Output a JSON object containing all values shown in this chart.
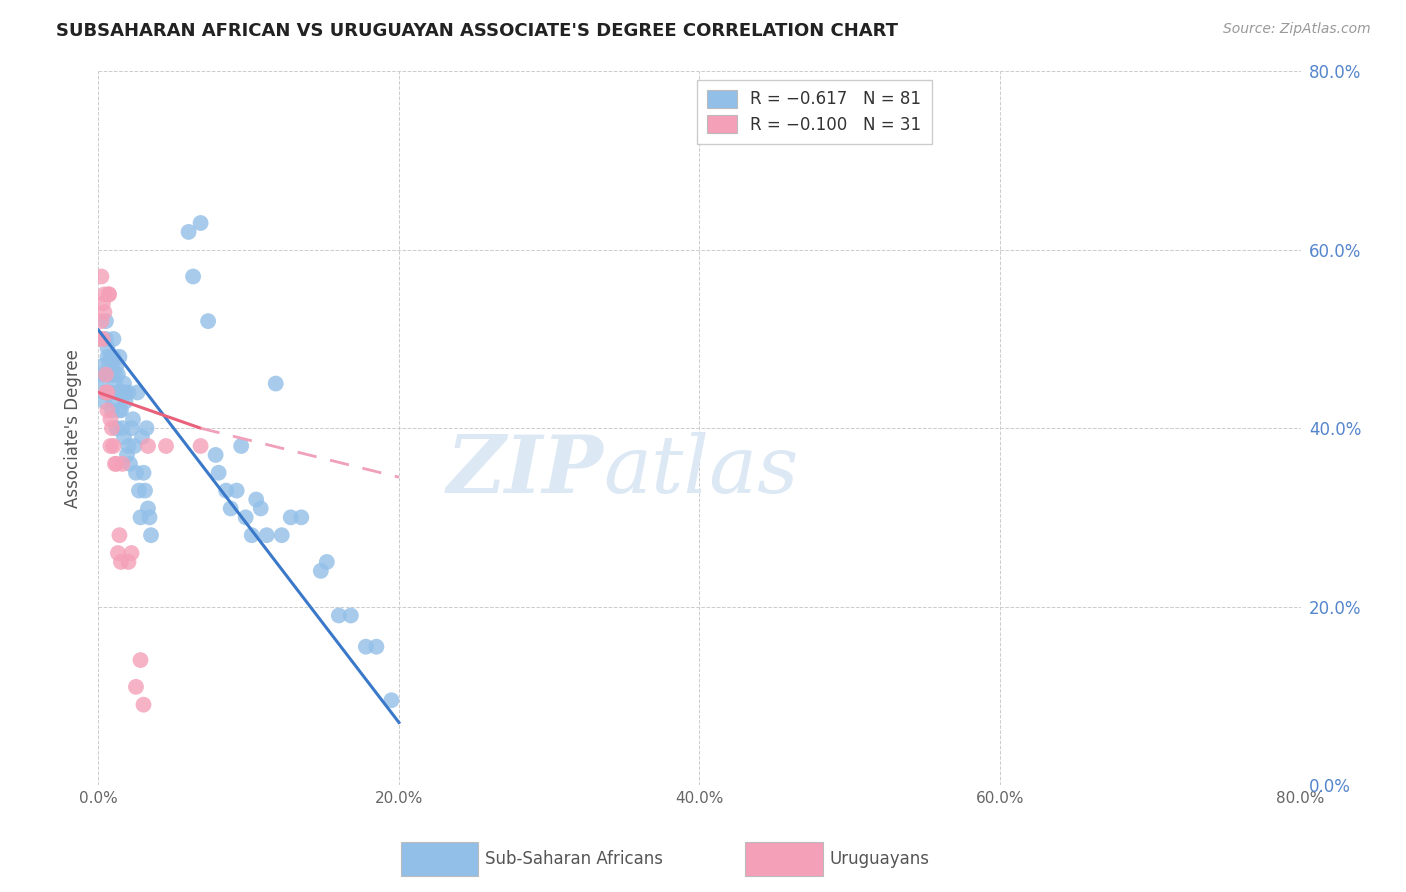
{
  "title": "SUBSAHARAN AFRICAN VS URUGUAYAN ASSOCIATE'S DEGREE CORRELATION CHART",
  "source": "Source: ZipAtlas.com",
  "ylabel": "Associate's Degree",
  "xlim": [
    0,
    0.8
  ],
  "ylim": [
    0,
    0.8
  ],
  "watermark_zip": "ZIP",
  "watermark_atlas": "atlas",
  "blue_color": "#92bfe8",
  "pink_color": "#f4a0b8",
  "blue_line_color": "#3a78c9",
  "pink_line_color": "#e8607a",
  "pink_line_dashed_color": "#f0a0b8",
  "background_color": "#ffffff",
  "grid_color": "#cccccc",
  "title_color": "#222222",
  "right_axis_color": "#5585cc",
  "watermark_color": "#dde8f5",
  "blue_scatter": [
    [
      0.002,
      0.455
    ],
    [
      0.003,
      0.46
    ],
    [
      0.003,
      0.47
    ],
    [
      0.004,
      0.44
    ],
    [
      0.004,
      0.43
    ],
    [
      0.005,
      0.52
    ],
    [
      0.005,
      0.5
    ],
    [
      0.006,
      0.49
    ],
    [
      0.006,
      0.48
    ],
    [
      0.007,
      0.47
    ],
    [
      0.007,
      0.46
    ],
    [
      0.007,
      0.44
    ],
    [
      0.008,
      0.46
    ],
    [
      0.008,
      0.44
    ],
    [
      0.008,
      0.48
    ],
    [
      0.009,
      0.46
    ],
    [
      0.009,
      0.47
    ],
    [
      0.009,
      0.42
    ],
    [
      0.01,
      0.5
    ],
    [
      0.01,
      0.43
    ],
    [
      0.01,
      0.48
    ],
    [
      0.011,
      0.45
    ],
    [
      0.011,
      0.46
    ],
    [
      0.012,
      0.47
    ],
    [
      0.012,
      0.4
    ],
    [
      0.013,
      0.44
    ],
    [
      0.013,
      0.46
    ],
    [
      0.014,
      0.42
    ],
    [
      0.014,
      0.48
    ],
    [
      0.015,
      0.42
    ],
    [
      0.015,
      0.44
    ],
    [
      0.016,
      0.44
    ],
    [
      0.016,
      0.4
    ],
    [
      0.017,
      0.39
    ],
    [
      0.017,
      0.45
    ],
    [
      0.018,
      0.43
    ],
    [
      0.018,
      0.44
    ],
    [
      0.019,
      0.37
    ],
    [
      0.02,
      0.44
    ],
    [
      0.02,
      0.38
    ],
    [
      0.021,
      0.36
    ],
    [
      0.022,
      0.4
    ],
    [
      0.023,
      0.41
    ],
    [
      0.024,
      0.38
    ],
    [
      0.025,
      0.35
    ],
    [
      0.026,
      0.44
    ],
    [
      0.027,
      0.33
    ],
    [
      0.028,
      0.3
    ],
    [
      0.029,
      0.39
    ],
    [
      0.03,
      0.35
    ],
    [
      0.031,
      0.33
    ],
    [
      0.032,
      0.4
    ],
    [
      0.033,
      0.31
    ],
    [
      0.034,
      0.3
    ],
    [
      0.035,
      0.28
    ],
    [
      0.06,
      0.62
    ],
    [
      0.063,
      0.57
    ],
    [
      0.068,
      0.63
    ],
    [
      0.073,
      0.52
    ],
    [
      0.078,
      0.37
    ],
    [
      0.08,
      0.35
    ],
    [
      0.085,
      0.33
    ],
    [
      0.088,
      0.31
    ],
    [
      0.092,
      0.33
    ],
    [
      0.095,
      0.38
    ],
    [
      0.098,
      0.3
    ],
    [
      0.102,
      0.28
    ],
    [
      0.105,
      0.32
    ],
    [
      0.108,
      0.31
    ],
    [
      0.112,
      0.28
    ],
    [
      0.118,
      0.45
    ],
    [
      0.122,
      0.28
    ],
    [
      0.128,
      0.3
    ],
    [
      0.135,
      0.3
    ],
    [
      0.148,
      0.24
    ],
    [
      0.152,
      0.25
    ],
    [
      0.16,
      0.19
    ],
    [
      0.168,
      0.19
    ],
    [
      0.178,
      0.155
    ],
    [
      0.185,
      0.155
    ],
    [
      0.195,
      0.095
    ]
  ],
  "pink_scatter": [
    [
      0.001,
      0.5
    ],
    [
      0.002,
      0.57
    ],
    [
      0.002,
      0.52
    ],
    [
      0.003,
      0.54
    ],
    [
      0.003,
      0.5
    ],
    [
      0.004,
      0.53
    ],
    [
      0.004,
      0.55
    ],
    [
      0.005,
      0.46
    ],
    [
      0.005,
      0.44
    ],
    [
      0.006,
      0.44
    ],
    [
      0.006,
      0.42
    ],
    [
      0.007,
      0.55
    ],
    [
      0.007,
      0.55
    ],
    [
      0.008,
      0.38
    ],
    [
      0.008,
      0.41
    ],
    [
      0.009,
      0.4
    ],
    [
      0.01,
      0.38
    ],
    [
      0.011,
      0.36
    ],
    [
      0.012,
      0.36
    ],
    [
      0.013,
      0.26
    ],
    [
      0.014,
      0.28
    ],
    [
      0.015,
      0.25
    ],
    [
      0.016,
      0.36
    ],
    [
      0.02,
      0.25
    ],
    [
      0.022,
      0.26
    ],
    [
      0.025,
      0.11
    ],
    [
      0.028,
      0.14
    ],
    [
      0.03,
      0.09
    ],
    [
      0.033,
      0.38
    ],
    [
      0.045,
      0.38
    ],
    [
      0.068,
      0.38
    ]
  ],
  "blue_trendline": [
    [
      0.0,
      0.51
    ],
    [
      0.2,
      0.07
    ]
  ],
  "pink_trendline_solid": [
    [
      0.0,
      0.44
    ],
    [
      0.068,
      0.4
    ]
  ],
  "pink_trendline_dashed": [
    [
      0.068,
      0.4
    ],
    [
      0.2,
      0.345
    ]
  ],
  "legend_blue_label": "R = −0.617   N = 81",
  "legend_pink_label": "R = −0.100   N = 31",
  "bottom_legend_blue": "Sub-Saharan Africans",
  "bottom_legend_pink": "Uruguayans"
}
